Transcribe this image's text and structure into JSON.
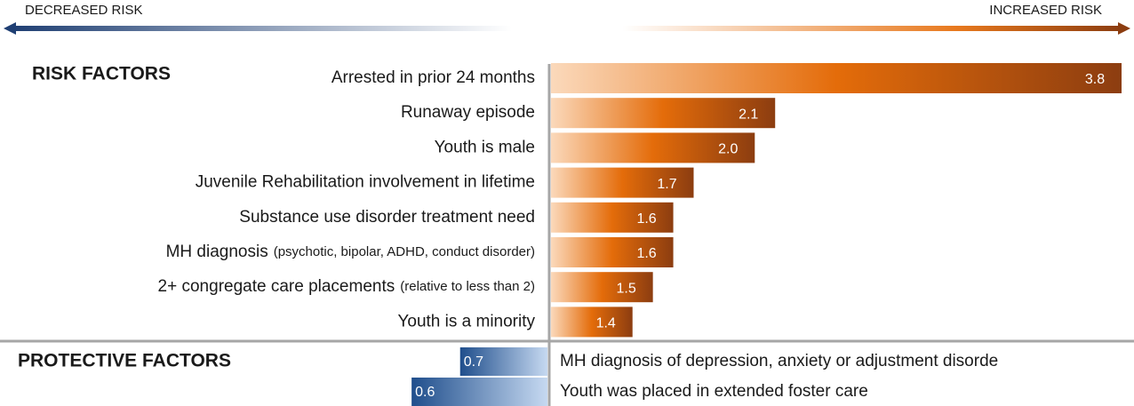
{
  "chart_data": {
    "type": "bar",
    "left_label": "DECREASED RISK",
    "right_label": "INCREASED RISK",
    "xlim": [
      1,
      3.8
    ],
    "groups": [
      {
        "title": "RISK FACTORS",
        "categories": [
          "Arrested in prior 24 months",
          "Runaway episode",
          "Youth is male",
          "Juvenile Rehabilitation involvement in lifetime",
          "Substance use disorder treatment need",
          {
            "label": "MH diagnosis",
            "note": "(psychotic, bipolar, ADHD, conduct disorder)"
          },
          {
            "label": "2+ congregate care placements",
            "note": "(relative to less than 2)"
          },
          "Youth is a minority"
        ],
        "values": [
          3.8,
          2.1,
          2,
          1.7,
          1.6,
          1.6,
          1.5,
          1.4
        ],
        "value_labels": [
          "3.8",
          "2.1",
          "2.0",
          "1.7",
          "1.6",
          "1.6",
          "1.5",
          "1.4"
        ],
        "colors": [
          "#fbd9bb",
          "#e46c0a",
          "#8c3d10"
        ]
      },
      {
        "title": "PROTECTIVE FACTORS",
        "categories": [
          "MH diagnosis of depression, anxiety or adjustment disorde",
          "Youth was placed in extended foster care"
        ],
        "values": [
          0.7,
          0.6
        ],
        "value_labels": [
          "0.7",
          "0.6"
        ],
        "colors": [
          "#1f4e8c",
          "#c6d9f1"
        ]
      }
    ]
  }
}
